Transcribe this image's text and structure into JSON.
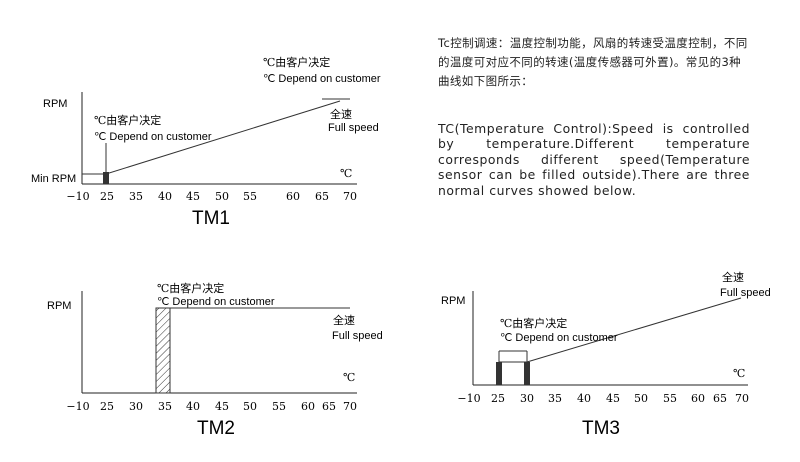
{
  "description": {
    "chinese": "Tc控制调速：温度控制功能，风扇的转速受温度控制，不同的温度可对应不同的转速(温度传感器可外置)。常见的3种曲线如下图所示：",
    "english": "TC(Temperature Control):Speed is controlled by temperature.Different temperature corresponds different speed(Temperature sensor can be filled outside).There are three normal curves showed below."
  },
  "shared_labels": {
    "customer_cn": "℃由客户决定",
    "customer_en": "℃  Depend on customer",
    "full_speed_cn": "全速",
    "full_speed_en": "Full speed",
    "rpm": "RPM",
    "min_rpm": "Min RPM",
    "celsius": "℃"
  },
  "chart_data": [
    {
      "type": "line",
      "title": "TM1",
      "ylabel": "RPM",
      "x_unit": "℃",
      "x_ticks": [
        "−10",
        "25",
        "35",
        "45",
        "55",
        "65",
        "70"
      ],
      "y_labels": [
        "RPM",
        "Min RPM"
      ],
      "series": [
        {
          "x": [
            "−10",
            "25",
            "70"
          ],
          "values": [
            "Min RPM",
            "Min RPM",
            "Full speed"
          ]
        }
      ],
      "annotations": [
        "℃由客户决定",
        "℃  Depend on customer",
        "全速",
        "Full speed"
      ]
    },
    {
      "type": "line",
      "title": "TM2",
      "ylabel": "RPM",
      "x_unit": "℃",
      "x_ticks": [
        "−10",
        "25",
        "30",
        "35",
        "40",
        "45",
        "50",
        "55",
        "60",
        "65",
        "70"
      ],
      "series": [
        {
          "x": [
            "35",
            "70"
          ],
          "values": [
            "Full speed",
            "Full speed"
          ]
        }
      ],
      "annotations": [
        "℃由客户决定",
        "℃  Depend on customer",
        "全速",
        "Full speed"
      ]
    },
    {
      "type": "line",
      "title": "TM3",
      "ylabel": "RPM",
      "x_unit": "℃",
      "x_ticks": [
        "−10",
        "25",
        "30",
        "35",
        "40",
        "45",
        "50",
        "55",
        "60",
        "65",
        "70"
      ],
      "series": [
        {
          "x": [
            "25",
            "30",
            "70"
          ],
          "values": [
            "0",
            "0",
            "Full speed"
          ]
        }
      ],
      "annotations": [
        "℃由客户决定",
        "℃  Depend on customer",
        "全速",
        "Full speed"
      ]
    }
  ]
}
